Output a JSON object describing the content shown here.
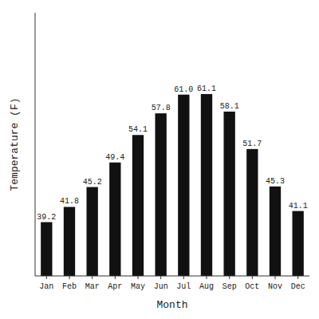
{
  "chart_data": {
    "type": "bar",
    "categories": [
      "Jan",
      "Feb",
      "Mar",
      "Apr",
      "May",
      "Jun",
      "Jul",
      "Aug",
      "Sep",
      "Oct",
      "Nov",
      "Dec"
    ],
    "values": [
      39.2,
      41.8,
      45.2,
      49.4,
      54.1,
      57.8,
      61.0,
      61.1,
      58.1,
      51.7,
      45.3,
      41.1
    ],
    "value_labels": [
      "39.2",
      "41.8",
      "45.2",
      "49.4",
      "54.1",
      "57.8",
      "61.0",
      "61.1",
      "58.1",
      "51.7",
      "45.3",
      "41.1"
    ],
    "data_labels": true,
    "color": "#111111",
    "x_label": "Month",
    "y_label": "Temperature (F)",
    "ylim": [
      30,
      75
    ],
    "grid": false,
    "tick_labels": "x"
  }
}
